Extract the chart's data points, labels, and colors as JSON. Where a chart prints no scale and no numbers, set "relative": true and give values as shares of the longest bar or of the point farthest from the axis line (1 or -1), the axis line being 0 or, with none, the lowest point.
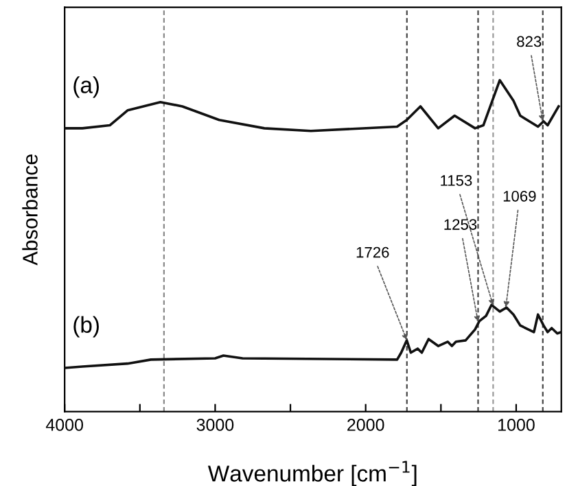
{
  "chart_data": {
    "type": "line",
    "relative": true,
    "xlabel": "Wavenumber [cm$^{−1}$]",
    "ylabel": "Absorbance",
    "xlim": [
      4000,
      700
    ],
    "xticks": [
      4000,
      {
        "value": 3500,
        "label": null
      },
      3000,
      {
        "value": 2500,
        "label": null
      },
      2000,
      {
        "value": 1500,
        "label": null
      },
      1000
    ],
    "grid": false,
    "legend": false,
    "marker": "none",
    "line_style": "solid",
    "series": [
      {
        "name": "(a)",
        "color": "#111111",
        "x": [
          4000,
          3882,
          3700,
          3582,
          3364,
          3218,
          2973,
          2673,
          2364,
          1791,
          1727,
          1636,
          1518,
          1409,
          1273,
          1218,
          1109,
          1018,
          973,
          855,
          818,
          791,
          718
        ],
        "values": [
          0.855,
          0.855,
          0.864,
          0.909,
          0.934,
          0.921,
          0.88,
          0.855,
          0.847,
          0.86,
          0.88,
          0.921,
          0.855,
          0.893,
          0.855,
          0.864,
          1.0,
          0.938,
          0.893,
          0.86,
          0.876,
          0.864,
          0.921
        ]
      },
      {
        "name": "(b)",
        "color": "#111111",
        "x": [
          4000,
          3882,
          3582,
          3427,
          3000,
          2945,
          2818,
          1791,
          1764,
          1727,
          1700,
          1655,
          1627,
          1582,
          1518,
          1455,
          1427,
          1400,
          1336,
          1273,
          1245,
          1200,
          1164,
          1109,
          1064,
          1018,
          973,
          882,
          855,
          818,
          791,
          764,
          727,
          700
        ],
        "values": [
          0.132,
          0.136,
          0.145,
          0.157,
          0.161,
          0.169,
          0.161,
          0.157,
          0.178,
          0.215,
          0.178,
          0.19,
          0.178,
          0.219,
          0.198,
          0.211,
          0.198,
          0.211,
          0.215,
          0.248,
          0.273,
          0.289,
          0.322,
          0.302,
          0.314,
          0.293,
          0.26,
          0.24,
          0.293,
          0.26,
          0.24,
          0.252,
          0.236,
          0.24
        ]
      }
    ],
    "ref_lines": [
      {
        "axis": "x",
        "value": 3340,
        "color": "#888888",
        "line_style": "dashed"
      },
      {
        "axis": "x",
        "value": 1726,
        "color": "#444444",
        "line_style": "dashed"
      },
      {
        "axis": "x",
        "value": 1253,
        "color": "#444444",
        "line_style": "dashed"
      },
      {
        "axis": "x",
        "value": 1153,
        "color": "#999999",
        "line_style": "dashed"
      },
      {
        "axis": "x",
        "value": 823,
        "color": "#444444",
        "line_style": "dashed"
      }
    ],
    "annotations": [
      {
        "text": "823",
        "x": 823,
        "y": 0.876
      },
      {
        "text": "1153",
        "x": 1153,
        "y": 0.32
      },
      {
        "text": "1253",
        "x": 1253,
        "y": 0.27
      },
      {
        "text": "1069",
        "x": 1069,
        "y": 0.314
      },
      {
        "text": "1726",
        "x": 1726,
        "y": 0.215
      }
    ]
  }
}
